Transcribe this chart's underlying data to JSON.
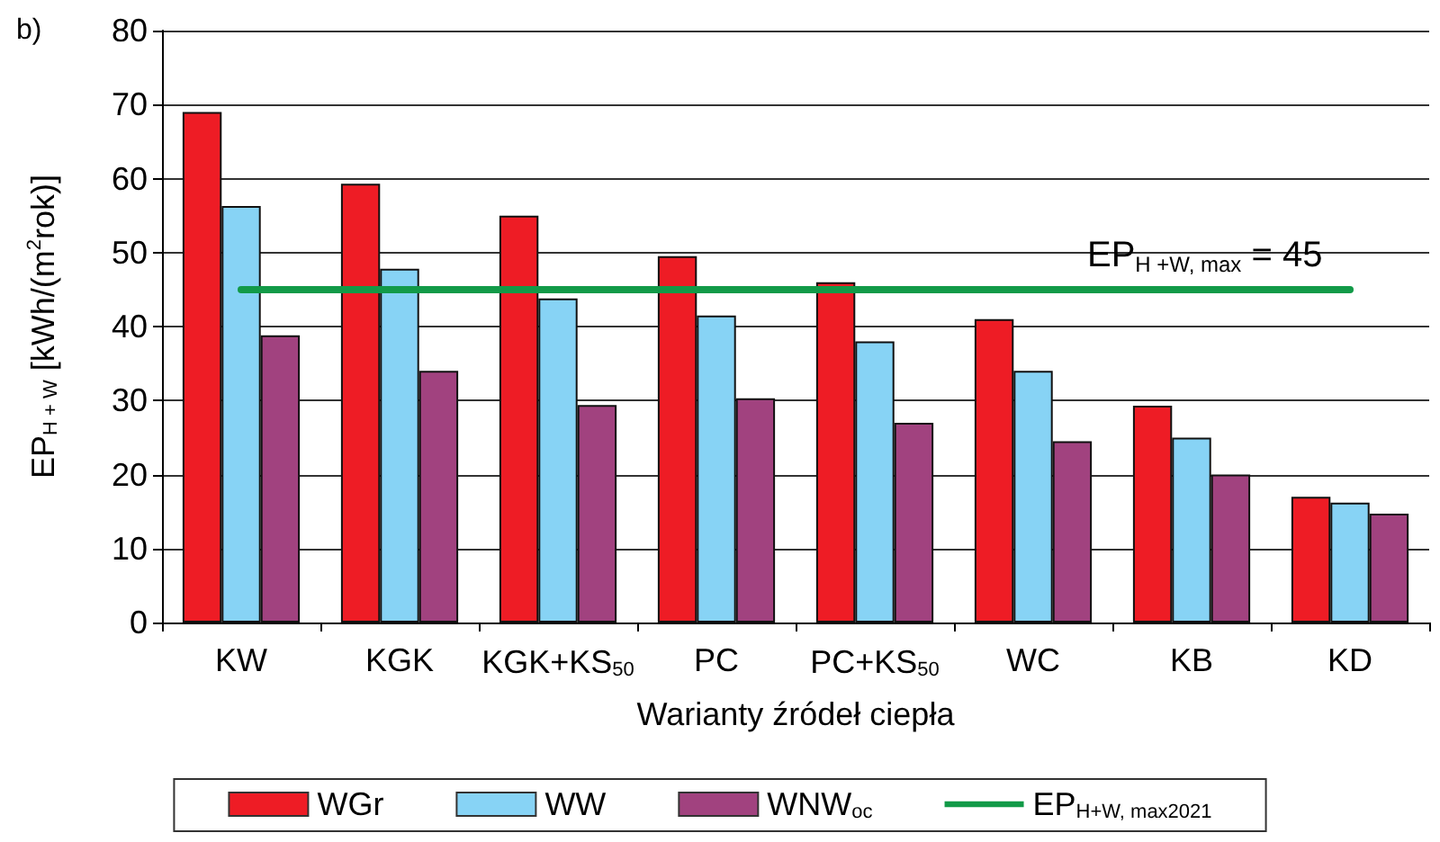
{
  "chart_data": {
    "type": "bar",
    "title": "b)",
    "xlabel": "Warianty źródeł ciepła",
    "ylabel": "EP$_{H + W}$ [kWh/(m$^{2}$rok)]",
    "categories": [
      "KW",
      "KGK",
      "KGK+KS$_{50}$",
      "PC",
      "PC+KS$_{50}$",
      "WC",
      "KB",
      "KD"
    ],
    "series": [
      {
        "name": "WGr",
        "color": "#ee1c25",
        "values": [
          69,
          59.3,
          55,
          49.5,
          46,
          41,
          29.3,
          17
        ]
      },
      {
        "name": "WW",
        "color": "#87d3f5",
        "values": [
          56.3,
          47.8,
          43.8,
          41.5,
          38,
          34,
          25,
          16.2
        ]
      },
      {
        "name": "WNW$_{oc}$",
        "color": "#a1427f",
        "values": [
          38.8,
          34,
          29.4,
          30.3,
          27,
          24.5,
          20,
          14.7
        ]
      },
      {
        "name": "EP$_{H+W, max2021}$",
        "type": "line",
        "color": "#129a48",
        "values": [
          45,
          45,
          45,
          45,
          45,
          45,
          45,
          45
        ]
      }
    ],
    "annotations": [
      {
        "text": "EP$_{H +W, max}$ = 45",
        "x": "WC",
        "y": 45
      }
    ],
    "ylim": [
      0,
      80
    ],
    "yticks": [
      0,
      10,
      20,
      30,
      40,
      50,
      60,
      70,
      80
    ],
    "grid": "y",
    "legend": "bottom",
    "marker": "none",
    "line_style": "solid"
  }
}
